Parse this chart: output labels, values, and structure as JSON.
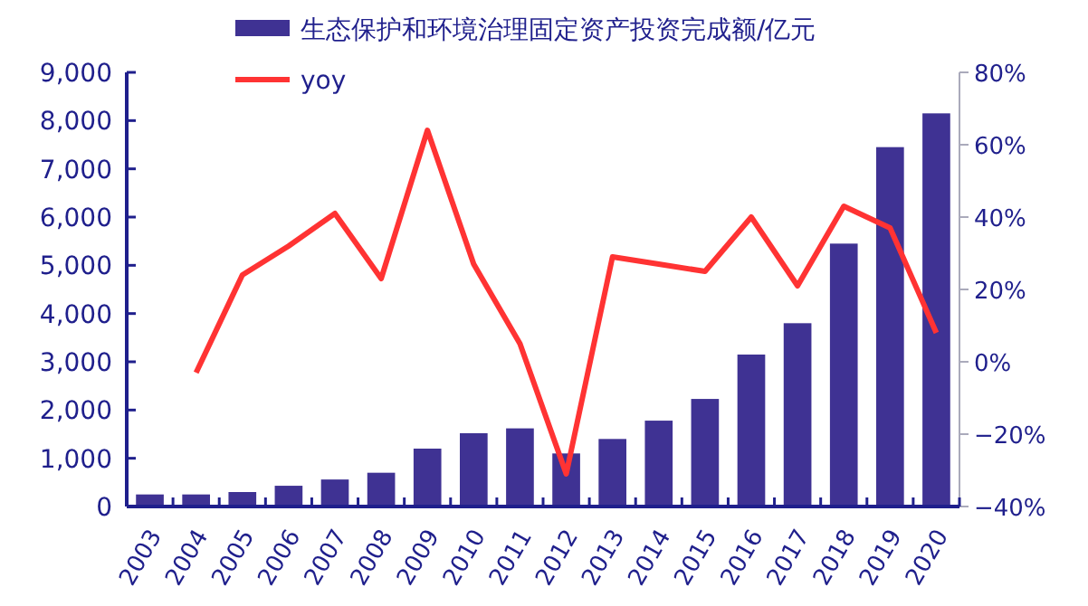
{
  "chart_data": {
    "type": "bar",
    "categories": [
      "2003",
      "2004",
      "2005",
      "2006",
      "2007",
      "2008",
      "2009",
      "2010",
      "2011",
      "2012",
      "2013",
      "2014",
      "2015",
      "2016",
      "2017",
      "2018",
      "2019",
      "2020"
    ],
    "series": [
      {
        "name": "生态保护和环境治理固定资产投资完成额/亿元",
        "color": "#3f3293",
        "values": [
          250,
          250,
          300,
          430,
          560,
          700,
          1200,
          1520,
          1620,
          1100,
          1400,
          1780,
          2230,
          3150,
          3800,
          5450,
          7450,
          8150
        ]
      },
      {
        "name": "yoy",
        "type": "line",
        "axis": "y2",
        "color": "#ff3333",
        "values": [
          null,
          -3,
          24,
          32,
          41,
          23,
          64,
          27,
          5,
          -31,
          29,
          27,
          25,
          40,
          21,
          43,
          37,
          8
        ]
      }
    ],
    "ylim": [
      0,
      9000
    ],
    "yticks": [
      {
        "value": 0,
        "label": "0"
      },
      {
        "value": 1000,
        "label": "1,000"
      },
      {
        "value": 2000,
        "label": "2,000"
      },
      {
        "value": 3000,
        "label": "3,000"
      },
      {
        "value": 4000,
        "label": "4,000"
      },
      {
        "value": 5000,
        "label": "5,000"
      },
      {
        "value": 6000,
        "label": "6,000"
      },
      {
        "value": 7000,
        "label": "7,000"
      },
      {
        "value": 8000,
        "label": "8,000"
      },
      {
        "value": 9000,
        "label": "9,000"
      }
    ],
    "y2lim": [
      -40,
      80
    ],
    "y2ticks": [
      {
        "value": -40,
        "label": "−40%"
      },
      {
        "value": -20,
        "label": "−20%"
      },
      {
        "value": 0,
        "label": "0%"
      },
      {
        "value": 20,
        "label": "20%"
      },
      {
        "value": 40,
        "label": "40%"
      },
      {
        "value": 60,
        "label": "60%"
      },
      {
        "value": 80,
        "label": "80%"
      }
    ],
    "legend": "top",
    "grid": false
  }
}
